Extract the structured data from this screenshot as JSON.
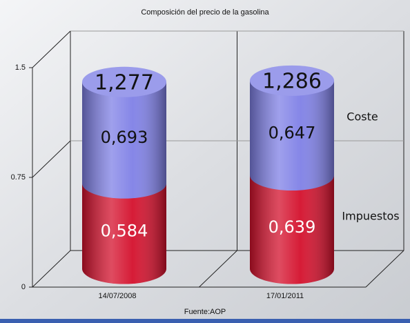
{
  "chart_data": {
    "type": "bar",
    "title": "Composición del precio de la gasolina",
    "categories": [
      "14/07/2008",
      "17/01/2011"
    ],
    "series": [
      {
        "name": "Impuestos",
        "color": "#d4102c",
        "values": [
          0.584,
          0.639
        ],
        "value_labels": [
          "0,584",
          "0,639"
        ]
      },
      {
        "name": "Coste",
        "color": "#7f80e6",
        "values": [
          0.693,
          0.647
        ],
        "value_labels": [
          "0,693",
          "0,647"
        ]
      }
    ],
    "totals": {
      "values": [
        1.277,
        1.286
      ],
      "value_labels": [
        "1,277",
        "1,286"
      ]
    },
    "ylim": [
      0,
      1.5
    ],
    "yticks": [
      0,
      0.75,
      1.5
    ],
    "grid": true,
    "stacked": true,
    "source": "Fuente:AOP"
  }
}
